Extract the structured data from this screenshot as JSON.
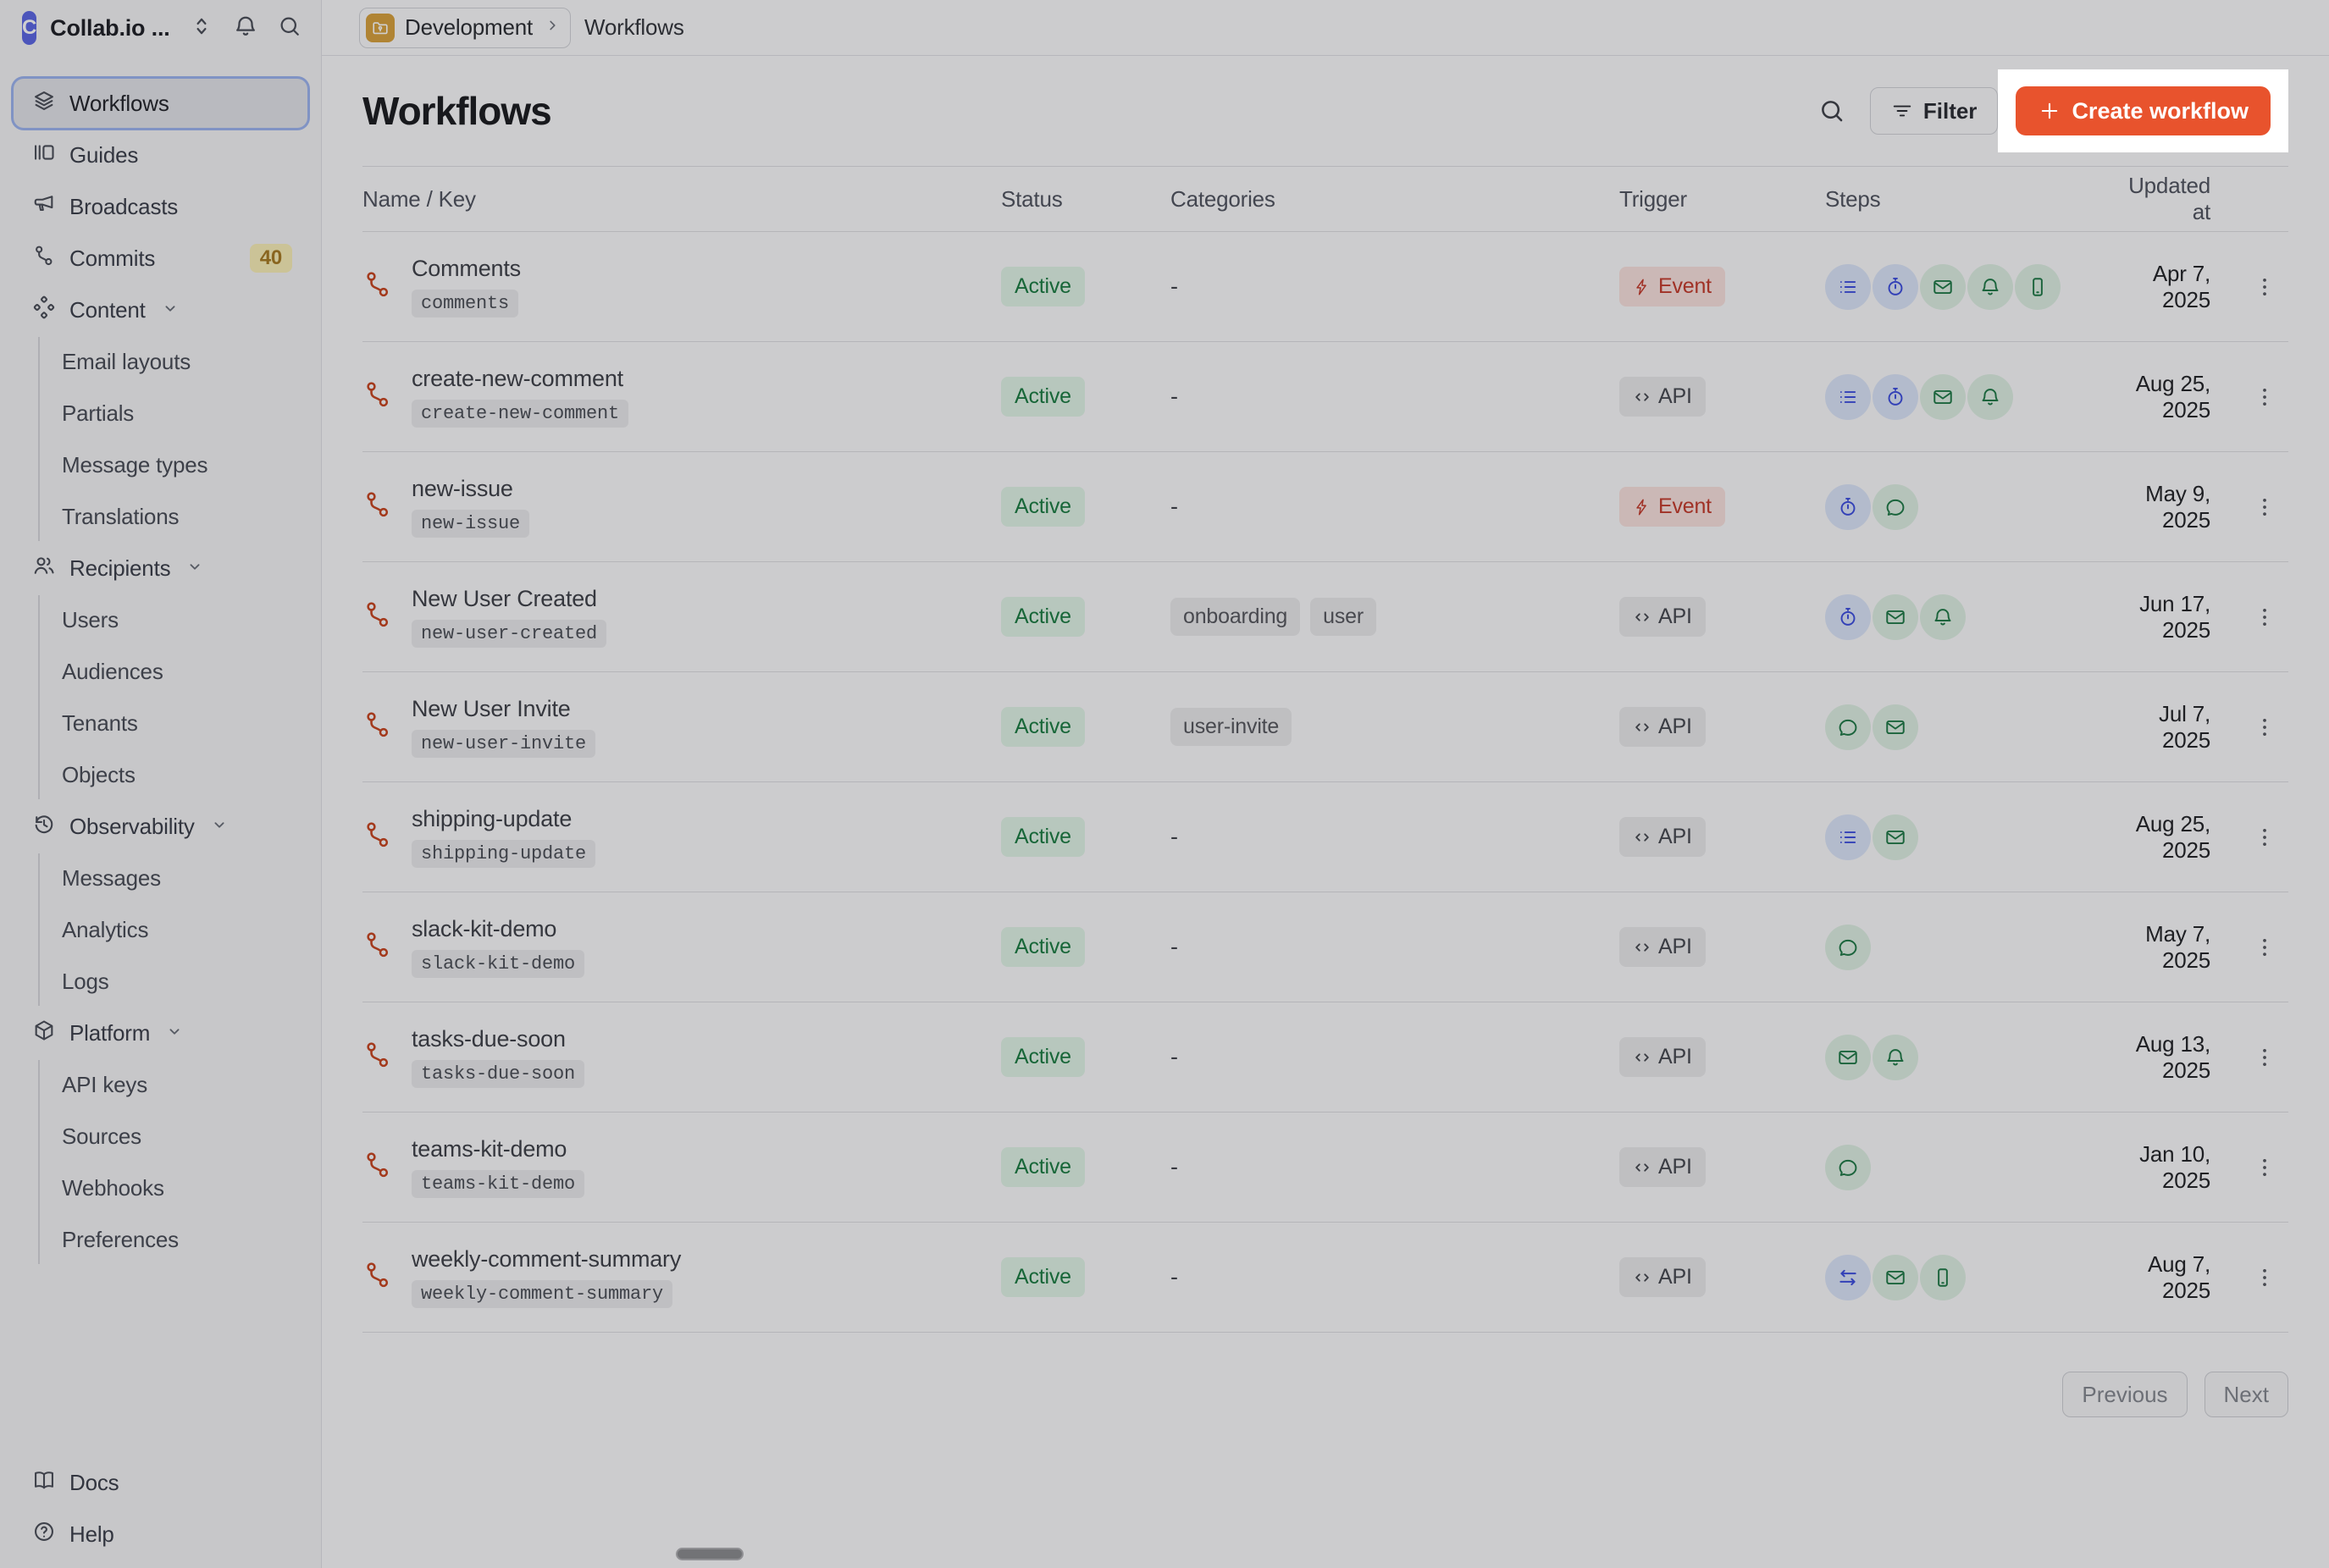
{
  "colors": {
    "accent": "#E8532D",
    "sidebar_bg": "#F6F6F7",
    "main_bg": "#FCFCFD",
    "border": "#E2E2E6",
    "row_border": "#DFDFE3",
    "text_primary": "#1B1C20",
    "selected_bg": "#E4E5EA",
    "selected_ring": "#9DB4F0",
    "badge_yellow_bg": "#FBF0B8",
    "badge_yellow_text": "#A87B22",
    "green_bg": "#E2F5E8",
    "green_text": "#1A7C41",
    "red_bg": "#FAE3DF",
    "red_text": "#C53A2B",
    "grey_chip_bg": "#EBEBED",
    "grey_chip_text": "#57585E",
    "key_bg": "#ECECEE",
    "key_text": "#4C4F57",
    "api_text": "#45484F",
    "step_blue_bg": "#DCE6FA",
    "step_blue_icon": "#3D4EE0",
    "step_green_bg": "#DFF1E4",
    "step_green_icon": "#1E7A46",
    "workflow_icon": "#C8441F",
    "logo_bg": "#5C67E5",
    "env_icon_bg": "#D9A23C",
    "overlay": "rgba(16,17,20,0.2)",
    "spotlight_bg": "#FFFFFF",
    "pill": "#8B8C8F"
  },
  "topbar": {
    "org": "Collab.io ...",
    "logo_letter": "C",
    "env": "Development",
    "page": "Workflows"
  },
  "sidebar": {
    "items": [
      {
        "type": "item",
        "icon": "layers",
        "label": "Workflows",
        "selected": true
      },
      {
        "type": "item",
        "icon": "guides",
        "label": "Guides"
      },
      {
        "type": "item",
        "icon": "megaphone",
        "label": "Broadcasts"
      },
      {
        "type": "item",
        "icon": "commit",
        "label": "Commits",
        "badge": "40"
      },
      {
        "type": "group",
        "icon": "diamonds",
        "label": "Content",
        "children": [
          "Email layouts",
          "Partials",
          "Message types",
          "Translations"
        ]
      },
      {
        "type": "group",
        "icon": "users",
        "label": "Recipients",
        "children": [
          "Users",
          "Audiences",
          "Tenants",
          "Objects"
        ]
      },
      {
        "type": "group",
        "icon": "history",
        "label": "Observability",
        "children": [
          "Messages",
          "Analytics",
          "Logs"
        ]
      },
      {
        "type": "group",
        "icon": "box",
        "label": "Platform",
        "children": [
          "API keys",
          "Sources",
          "Webhooks",
          "Preferences"
        ]
      }
    ],
    "footer": [
      {
        "icon": "book",
        "label": "Docs"
      },
      {
        "icon": "help",
        "label": "Help"
      }
    ]
  },
  "page": {
    "title": "Workflows",
    "filter_label": "Filter",
    "create_label": "Create workflow"
  },
  "table": {
    "columns": [
      "Name / Key",
      "Status",
      "Categories",
      "Trigger",
      "Steps",
      "Updated at"
    ],
    "rows": [
      {
        "name": "Comments",
        "key": "comments",
        "status": "Active",
        "categories": [],
        "trigger": {
          "type": "event",
          "label": "Event"
        },
        "steps": [
          {
            "icon": "list",
            "tone": "blue"
          },
          {
            "icon": "timer",
            "tone": "blue"
          },
          {
            "icon": "email",
            "tone": "green"
          },
          {
            "icon": "bell",
            "tone": "green"
          },
          {
            "icon": "phone",
            "tone": "green"
          }
        ],
        "updated": "Apr 7, 2025"
      },
      {
        "name": "create-new-comment",
        "key": "create-new-comment",
        "status": "Active",
        "categories": [],
        "trigger": {
          "type": "api",
          "label": "API"
        },
        "steps": [
          {
            "icon": "list",
            "tone": "blue"
          },
          {
            "icon": "timer",
            "tone": "blue"
          },
          {
            "icon": "email",
            "tone": "green"
          },
          {
            "icon": "bell",
            "tone": "green"
          }
        ],
        "updated": "Aug 25, 2025"
      },
      {
        "name": "new-issue",
        "key": "new-issue",
        "status": "Active",
        "categories": [],
        "trigger": {
          "type": "event",
          "label": "Event"
        },
        "steps": [
          {
            "icon": "timer",
            "tone": "blue"
          },
          {
            "icon": "chat",
            "tone": "green"
          }
        ],
        "updated": "May 9, 2025"
      },
      {
        "name": "New User Created",
        "key": "new-user-created",
        "status": "Active",
        "categories": [
          "onboarding",
          "user"
        ],
        "trigger": {
          "type": "api",
          "label": "API"
        },
        "steps": [
          {
            "icon": "timer",
            "tone": "blue"
          },
          {
            "icon": "email",
            "tone": "green"
          },
          {
            "icon": "bell",
            "tone": "green"
          }
        ],
        "updated": "Jun 17, 2025"
      },
      {
        "name": "New User Invite",
        "key": "new-user-invite",
        "status": "Active",
        "categories": [
          "user-invite"
        ],
        "trigger": {
          "type": "api",
          "label": "API"
        },
        "steps": [
          {
            "icon": "chat",
            "tone": "green"
          },
          {
            "icon": "email",
            "tone": "green"
          }
        ],
        "updated": "Jul 7, 2025"
      },
      {
        "name": "shipping-update",
        "key": "shipping-update",
        "status": "Active",
        "categories": [],
        "trigger": {
          "type": "api",
          "label": "API"
        },
        "steps": [
          {
            "icon": "list",
            "tone": "blue"
          },
          {
            "icon": "email",
            "tone": "green"
          }
        ],
        "updated": "Aug 25, 2025"
      },
      {
        "name": "slack-kit-demo",
        "key": "slack-kit-demo",
        "status": "Active",
        "categories": [],
        "trigger": {
          "type": "api",
          "label": "API"
        },
        "steps": [
          {
            "icon": "chat",
            "tone": "green"
          }
        ],
        "updated": "May 7, 2025"
      },
      {
        "name": "tasks-due-soon",
        "key": "tasks-due-soon",
        "status": "Active",
        "categories": [],
        "trigger": {
          "type": "api",
          "label": "API"
        },
        "steps": [
          {
            "icon": "email",
            "tone": "green"
          },
          {
            "icon": "bell",
            "tone": "green"
          }
        ],
        "updated": "Aug 13, 2025"
      },
      {
        "name": "teams-kit-demo",
        "key": "teams-kit-demo",
        "status": "Active",
        "categories": [],
        "trigger": {
          "type": "api",
          "label": "API"
        },
        "steps": [
          {
            "icon": "chat",
            "tone": "green"
          }
        ],
        "updated": "Jan 10, 2025"
      },
      {
        "name": "weekly-comment-summary",
        "key": "weekly-comment-summary",
        "status": "Active",
        "categories": [],
        "trigger": {
          "type": "api",
          "label": "API"
        },
        "steps": [
          {
            "icon": "swap",
            "tone": "blue"
          },
          {
            "icon": "email",
            "tone": "green"
          },
          {
            "icon": "phone",
            "tone": "green"
          }
        ],
        "updated": "Aug 7, 2025"
      }
    ],
    "empty_categories_placeholder": "-"
  },
  "pagination": {
    "prev": "Previous",
    "next": "Next"
  }
}
